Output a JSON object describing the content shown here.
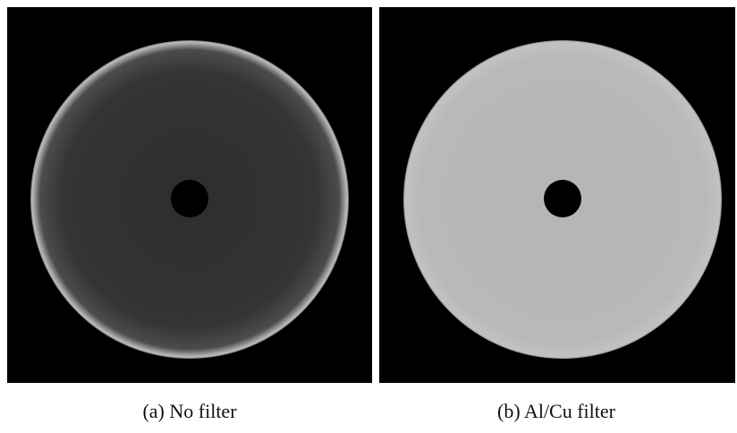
{
  "figures": [
    {
      "caption": "(a) No filter"
    },
    {
      "caption": "(b) Al/Cu filter"
    }
  ]
}
